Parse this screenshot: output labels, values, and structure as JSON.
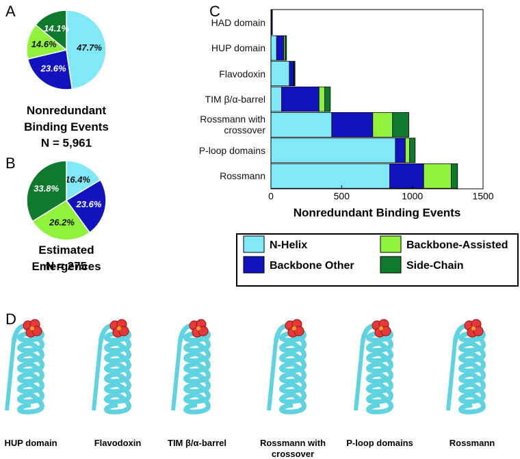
{
  "panels": [
    "A",
    "B",
    "C",
    "D"
  ],
  "chart_data": [
    {
      "type": "pie",
      "title": "Nonredundant Binding Events",
      "subtitle": "N = 5,961",
      "values": [
        47.7,
        23.6,
        14.6,
        14.1
      ],
      "value_labels": [
        "47.7%",
        "23.6%",
        "14.6%",
        "14.1%"
      ],
      "colors": [
        "#80e8f6",
        "#1212bf",
        "#90f23c",
        "#0d7a2c"
      ]
    },
    {
      "type": "pie",
      "title": "Estimated Emergences",
      "subtitle": "N = 275",
      "values": [
        16.4,
        23.6,
        26.2,
        33.8
      ],
      "value_labels": [
        "16.4%",
        "23.6%",
        "26.2%",
        "33.8%"
      ],
      "colors": [
        "#80e8f6",
        "#1212bf",
        "#90f23c",
        "#0d7a2c"
      ]
    },
    {
      "type": "hbar-stacked",
      "xlabel": "Nonredundant Binding Events",
      "categories": [
        "HAD domain",
        "HUP domain",
        "Flavodoxin",
        "TIM β/α-barrel",
        "Rossmann with crossover",
        "P-loop domains",
        "Rossmann"
      ],
      "xlim": [
        0,
        1500
      ],
      "xticks": [
        0,
        500,
        1000,
        1500
      ],
      "series": [
        {
          "name": "N-Helix",
          "color": "#80e8f6",
          "values": [
            0,
            40,
            130,
            75,
            430,
            880,
            840
          ]
        },
        {
          "name": "Backbone Other",
          "color": "#1212bf",
          "values": [
            8,
            50,
            30,
            265,
            290,
            70,
            240
          ]
        },
        {
          "name": "Backbone-Assisted",
          "color": "#90f23c",
          "values": [
            0,
            10,
            5,
            40,
            140,
            30,
            195
          ]
        },
        {
          "name": "Side-Chain",
          "color": "#0d7a2c",
          "values": [
            2,
            10,
            5,
            40,
            115,
            40,
            45
          ]
        }
      ]
    }
  ],
  "structures": [
    "HUP domain",
    "Flavodoxin",
    "TIM β/α-barrel",
    "Rossmann with crossover",
    "P-loop domains",
    "Rossmann"
  ]
}
